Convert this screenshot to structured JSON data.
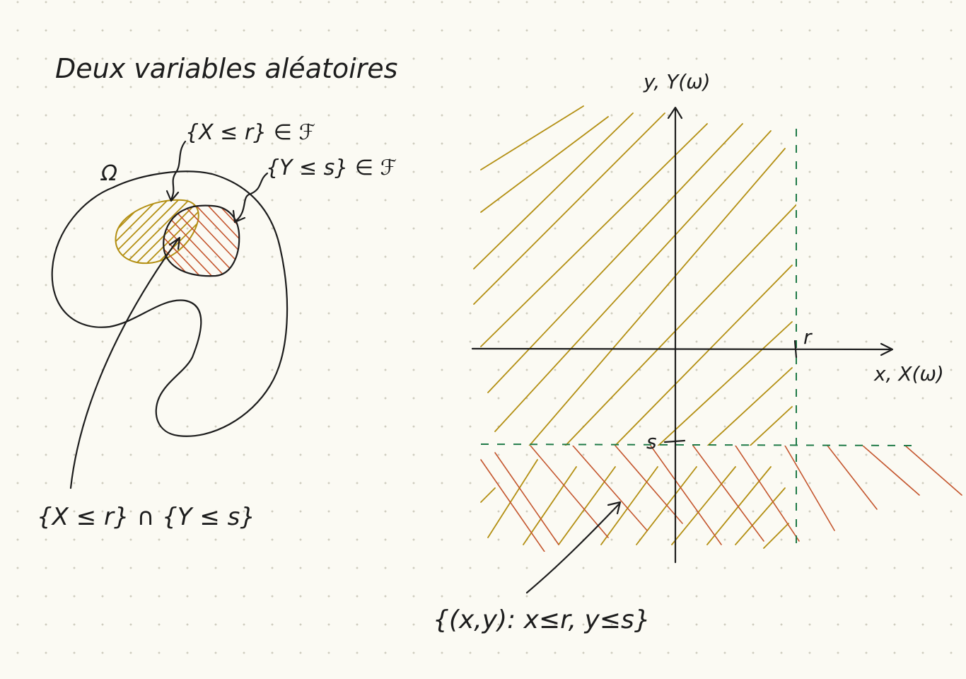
{
  "title": "Deux variables aléatoires",
  "left_diagram": {
    "omega_label": "Ω",
    "event_x_label": "{X ≤ r} ∈ ℱ",
    "event_y_label": "{Y ≤ s} ∈ ℱ",
    "intersection_label": "{X ≤ r} ∩ {Y ≤ s}"
  },
  "right_diagram": {
    "y_axis_label": "y, Y(ω)",
    "x_axis_label": "x, X(ω)",
    "r_tick_label": "r",
    "s_tick_label": "s",
    "region_label": "{(x,y): x≤r, y≤s}"
  },
  "colors": {
    "ink": "#1d1d1d",
    "olive_hatch": "#b38f12",
    "rust_hatch": "#c4552d",
    "dashed_lines": "#1f7a47",
    "paper": "#fbfaf3"
  }
}
